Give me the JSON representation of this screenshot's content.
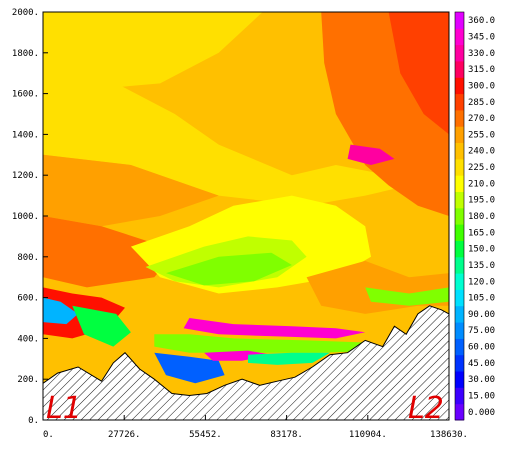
{
  "chart_data": {
    "type": "heatmap",
    "xlabel": "",
    "ylabel": "",
    "xlim": [
      0,
      138630
    ],
    "ylim": [
      0,
      2000
    ],
    "x_tick_labels": [
      "0.",
      "27726.",
      "55452.",
      "83178.",
      "110904.",
      "138630."
    ],
    "x_tick_values": [
      0,
      27726,
      55452,
      83178,
      110904,
      138630
    ],
    "y_tick_labels": [
      "0.",
      "200.",
      "400.",
      "600.",
      "800.",
      "1000.",
      "1200.",
      "1400.",
      "1600.",
      "1800.",
      "2000."
    ],
    "y_tick_values": [
      0,
      200,
      400,
      600,
      800,
      1000,
      1200,
      1400,
      1600,
      1800,
      2000
    ],
    "colorbar": {
      "labels": [
        "0.000",
        "15.00",
        "30.00",
        "45.00",
        "60.00",
        "75.00",
        "90.00",
        "105.0",
        "120.0",
        "135.0",
        "150.0",
        "165.0",
        "180.0",
        "195.0",
        "210.0",
        "225.0",
        "240.0",
        "255.0",
        "270.0",
        "285.0",
        "300.0",
        "315.0",
        "330.0",
        "345.0",
        "360.0"
      ],
      "values": [
        0,
        15,
        30,
        45,
        60,
        75,
        90,
        105,
        120,
        135,
        150,
        165,
        180,
        195,
        210,
        225,
        240,
        255,
        270,
        285,
        300,
        315,
        330,
        345,
        360
      ],
      "colors": [
        "#6a00ff",
        "#3c00ff",
        "#0000ff",
        "#0033ff",
        "#0060ff",
        "#008cff",
        "#00b4ff",
        "#00e0ff",
        "#00ffd0",
        "#00ff8c",
        "#00ff40",
        "#40ff00",
        "#80ff00",
        "#c0ff00",
        "#ffff00",
        "#ffe000",
        "#ffc000",
        "#ffa000",
        "#ff7000",
        "#ff4000",
        "#ff1000",
        "#ff0060",
        "#ff00a0",
        "#ff00d0",
        "#e000ff"
      ],
      "range": [
        0,
        360
      ]
    },
    "terrain": {
      "x": [
        0,
        5000,
        12000,
        20000,
        24000,
        28000,
        33000,
        38000,
        44000,
        50000,
        56000,
        62000,
        68000,
        74000,
        80000,
        86000,
        92000,
        98000,
        104000,
        110000,
        116000,
        120000,
        124000,
        128000,
        132000,
        136000,
        138630
      ],
      "z": [
        180,
        230,
        260,
        190,
        280,
        330,
        250,
        200,
        130,
        120,
        130,
        170,
        200,
        170,
        190,
        210,
        260,
        320,
        330,
        390,
        360,
        460,
        420,
        520,
        560,
        540,
        520
      ]
    },
    "regions": [
      {
        "value": 240,
        "points": [
          [
            0,
            2000
          ],
          [
            138630,
            2000
          ],
          [
            138630,
            0
          ],
          [
            0,
            0
          ]
        ]
      },
      {
        "value": 225,
        "points": [
          [
            0,
            2000
          ],
          [
            75000,
            2000
          ],
          [
            60000,
            1800
          ],
          [
            40000,
            1650
          ],
          [
            0,
            1600
          ]
        ]
      },
      {
        "value": 225,
        "points": [
          [
            0,
            1600
          ],
          [
            25000,
            1650
          ],
          [
            45000,
            1500
          ],
          [
            60000,
            1350
          ],
          [
            85000,
            1200
          ],
          [
            100000,
            1250
          ],
          [
            118000,
            1200
          ],
          [
            125000,
            1150
          ],
          [
            110000,
            1100
          ],
          [
            90000,
            1050
          ],
          [
            60000,
            1100
          ],
          [
            30000,
            1250
          ],
          [
            0,
            1300
          ]
        ]
      },
      {
        "value": 255,
        "points": [
          [
            0,
            1300
          ],
          [
            30000,
            1250
          ],
          [
            60000,
            1100
          ],
          [
            40000,
            1000
          ],
          [
            20000,
            950
          ],
          [
            0,
            1000
          ]
        ]
      },
      {
        "value": 270,
        "points": [
          [
            0,
            1000
          ],
          [
            20000,
            950
          ],
          [
            35000,
            880
          ],
          [
            45000,
            820
          ],
          [
            38000,
            700
          ],
          [
            15000,
            650
          ],
          [
            0,
            700
          ]
        ]
      },
      {
        "value": 270,
        "points": [
          [
            95000,
            2000
          ],
          [
            138630,
            2000
          ],
          [
            138630,
            1000
          ],
          [
            128000,
            1050
          ],
          [
            118000,
            1150
          ],
          [
            110000,
            1250
          ],
          [
            100000,
            1500
          ],
          [
            96000,
            1750
          ]
        ]
      },
      {
        "value": 285,
        "points": [
          [
            118000,
            2000
          ],
          [
            138630,
            2000
          ],
          [
            138630,
            1400
          ],
          [
            130000,
            1500
          ],
          [
            122000,
            1700
          ]
        ]
      },
      {
        "value": 330,
        "points": [
          [
            105000,
            1350
          ],
          [
            115000,
            1330
          ],
          [
            120000,
            1280
          ],
          [
            112000,
            1250
          ],
          [
            104000,
            1280
          ]
        ]
      },
      {
        "value": 210,
        "points": [
          [
            30000,
            850
          ],
          [
            50000,
            950
          ],
          [
            65000,
            1050
          ],
          [
            85000,
            1100
          ],
          [
            100000,
            1050
          ],
          [
            110000,
            950
          ],
          [
            112000,
            800
          ],
          [
            100000,
            700
          ],
          [
            80000,
            650
          ],
          [
            60000,
            620
          ],
          [
            40000,
            700
          ]
        ]
      },
      {
        "value": 195,
        "points": [
          [
            35000,
            750
          ],
          [
            55000,
            850
          ],
          [
            70000,
            900
          ],
          [
            85000,
            880
          ],
          [
            90000,
            800
          ],
          [
            80000,
            700
          ],
          [
            60000,
            650
          ],
          [
            45000,
            680
          ]
        ]
      },
      {
        "value": 180,
        "points": [
          [
            42000,
            720
          ],
          [
            60000,
            800
          ],
          [
            78000,
            820
          ],
          [
            85000,
            760
          ],
          [
            72000,
            680
          ],
          [
            55000,
            660
          ]
        ]
      },
      {
        "value": 255,
        "points": [
          [
            90000,
            700
          ],
          [
            110000,
            780
          ],
          [
            125000,
            700
          ],
          [
            138630,
            720
          ],
          [
            138630,
            560
          ],
          [
            128000,
            560
          ],
          [
            110000,
            520
          ],
          [
            95000,
            560
          ]
        ]
      },
      {
        "value": 180,
        "points": [
          [
            110000,
            650
          ],
          [
            125000,
            620
          ],
          [
            138630,
            650
          ],
          [
            138630,
            580
          ],
          [
            125000,
            560
          ],
          [
            112000,
            580
          ]
        ]
      },
      {
        "value": 300,
        "points": [
          [
            0,
            650
          ],
          [
            10000,
            620
          ],
          [
            20000,
            600
          ],
          [
            28000,
            550
          ],
          [
            22000,
            450
          ],
          [
            10000,
            400
          ],
          [
            0,
            420
          ]
        ]
      },
      {
        "value": 90,
        "points": [
          [
            0,
            600
          ],
          [
            6000,
            580
          ],
          [
            12000,
            520
          ],
          [
            8000,
            470
          ],
          [
            0,
            480
          ]
        ]
      },
      {
        "value": 150,
        "points": [
          [
            10000,
            560
          ],
          [
            25000,
            520
          ],
          [
            30000,
            430
          ],
          [
            24000,
            360
          ],
          [
            14000,
            420
          ]
        ]
      },
      {
        "value": 345,
        "points": [
          [
            50000,
            500
          ],
          [
            65000,
            470
          ],
          [
            85000,
            460
          ],
          [
            100000,
            450
          ],
          [
            110000,
            430
          ],
          [
            100000,
            400
          ],
          [
            80000,
            410
          ],
          [
            60000,
            420
          ],
          [
            48000,
            450
          ]
        ]
      },
      {
        "value": 180,
        "points": [
          [
            38000,
            420
          ],
          [
            50000,
            420
          ],
          [
            65000,
            400
          ],
          [
            90000,
            390
          ],
          [
            110000,
            380
          ],
          [
            115000,
            340
          ],
          [
            95000,
            330
          ],
          [
            70000,
            330
          ],
          [
            50000,
            330
          ],
          [
            38000,
            360
          ]
        ]
      },
      {
        "value": 60,
        "points": [
          [
            38000,
            330
          ],
          [
            50000,
            310
          ],
          [
            60000,
            290
          ],
          [
            62000,
            220
          ],
          [
            52000,
            180
          ],
          [
            42000,
            220
          ]
        ]
      },
      {
        "value": 345,
        "points": [
          [
            55000,
            330
          ],
          [
            70000,
            340
          ],
          [
            78000,
            320
          ],
          [
            68000,
            290
          ],
          [
            58000,
            290
          ]
        ]
      },
      {
        "value": 135,
        "points": [
          [
            70000,
            320
          ],
          [
            85000,
            330
          ],
          [
            98000,
            330
          ],
          [
            92000,
            280
          ],
          [
            80000,
            270
          ],
          [
            70000,
            280
          ]
        ]
      }
    ],
    "corner_labels": {
      "left": "L1",
      "right": "L2"
    }
  }
}
